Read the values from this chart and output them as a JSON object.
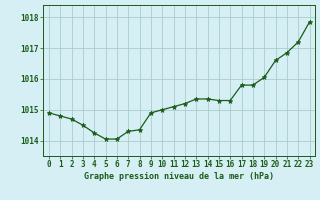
{
  "x": [
    0,
    1,
    2,
    3,
    4,
    5,
    6,
    7,
    8,
    9,
    10,
    11,
    12,
    13,
    14,
    15,
    16,
    17,
    18,
    19,
    20,
    21,
    22,
    23
  ],
  "y": [
    1014.9,
    1014.8,
    1014.7,
    1014.5,
    1014.25,
    1014.05,
    1014.05,
    1014.3,
    1014.35,
    1014.9,
    1015.0,
    1015.1,
    1015.2,
    1015.35,
    1015.35,
    1015.3,
    1015.3,
    1015.8,
    1015.8,
    1016.05,
    1016.6,
    1016.85,
    1017.2,
    1017.85
  ],
  "line_color": "#1a5c1a",
  "marker": "*",
  "marker_size": 3.5,
  "background_color": "#d6eff5",
  "grid_color": "#aacccc",
  "xlabel": "Graphe pression niveau de la mer (hPa)",
  "xlabel_color": "#1a5c1a",
  "tick_color": "#1a5c1a",
  "ylim": [
    1013.5,
    1018.4
  ],
  "yticks": [
    1014,
    1015,
    1016,
    1017,
    1018
  ],
  "xticks": [
    0,
    1,
    2,
    3,
    4,
    5,
    6,
    7,
    8,
    9,
    10,
    11,
    12,
    13,
    14,
    15,
    16,
    17,
    18,
    19,
    20,
    21,
    22,
    23
  ],
  "border_color": "#1a5c1a",
  "tick_fontsize": 5.5,
  "xlabel_fontsize": 6.0
}
